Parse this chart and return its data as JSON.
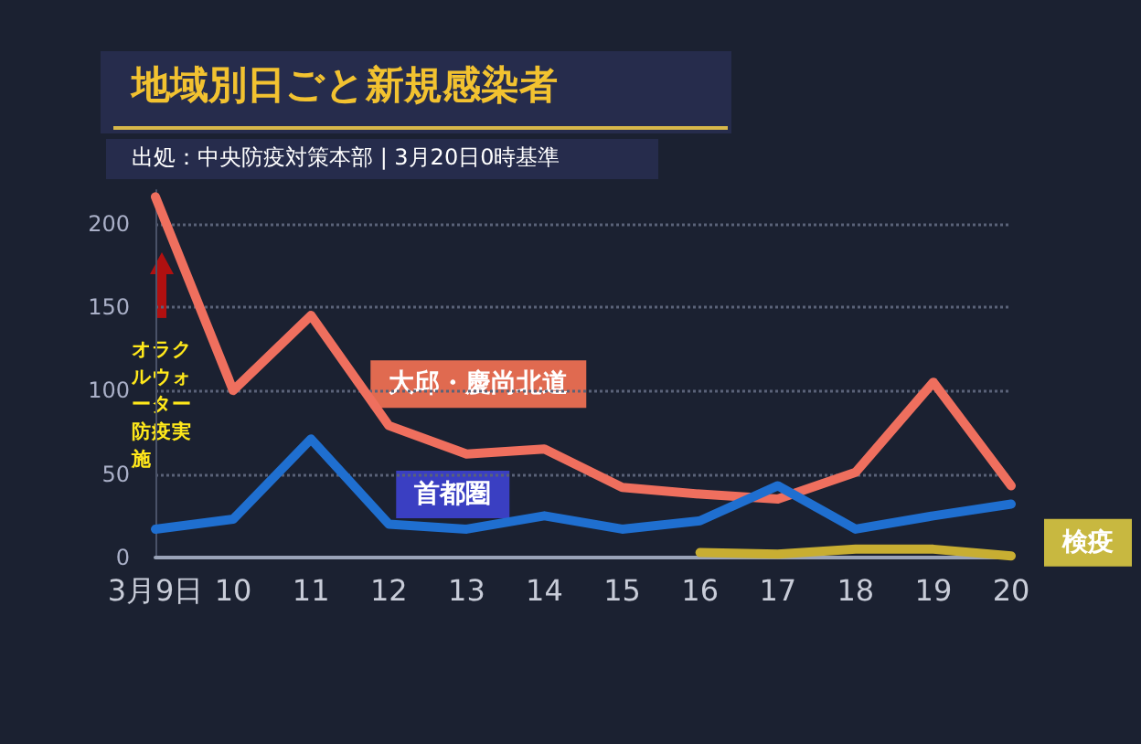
{
  "chart_data": {
    "type": "line",
    "title": "地域別日ごと新規感染者",
    "subtitle": "出処：中央防疫対策本部 | 3月20日0時基準",
    "categories": [
      "3月9日",
      "10",
      "11",
      "12",
      "13",
      "14",
      "15",
      "16",
      "17",
      "18",
      "19",
      "20"
    ],
    "series": [
      {
        "name": "大邱・慶尚北道",
        "color": "#ef6f5e",
        "values": [
          216,
          100,
          145,
          79,
          62,
          65,
          42,
          38,
          35,
          51,
          105,
          43
        ]
      },
      {
        "name": "首都圏",
        "color": "#1f6fd0",
        "values": [
          17,
          23,
          71,
          20,
          17,
          25,
          17,
          22,
          43,
          17,
          25,
          32
        ]
      },
      {
        "name": "検疫",
        "color": "#c8ae32",
        "values": [
          null,
          null,
          null,
          null,
          null,
          null,
          null,
          3,
          2,
          5,
          5,
          1
        ]
      }
    ],
    "annotations": [
      "オラクルウォーター防疫実施"
    ],
    "ylim": [
      0,
      220
    ],
    "yticks": [
      0,
      50,
      100,
      150,
      200
    ],
    "grid": "y",
    "legend": false,
    "marker": "none",
    "line_style": "solid"
  }
}
